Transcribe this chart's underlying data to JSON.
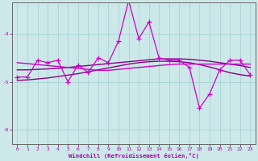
{
  "x": [
    0,
    1,
    2,
    3,
    4,
    5,
    6,
    7,
    8,
    9,
    10,
    11,
    12,
    13,
    14,
    15,
    16,
    17,
    18,
    19,
    20,
    21,
    22,
    23
  ],
  "y_main": [
    -4.9,
    -4.9,
    -4.55,
    -4.6,
    -4.55,
    -5.0,
    -4.65,
    -4.8,
    -4.5,
    -4.6,
    -4.15,
    -3.3,
    -4.1,
    -3.75,
    -4.5,
    -4.55,
    -4.55,
    -4.7,
    -5.55,
    -5.25,
    -4.75,
    -4.55,
    -4.55,
    -4.85
  ],
  "y_trend1": [
    -4.6,
    -4.62,
    -4.64,
    -4.66,
    -4.68,
    -4.7,
    -4.72,
    -4.74,
    -4.76,
    -4.76,
    -4.74,
    -4.72,
    -4.7,
    -4.68,
    -4.66,
    -4.64,
    -4.63,
    -4.63,
    -4.63,
    -4.63,
    -4.63,
    -4.63,
    -4.63,
    -4.63
  ],
  "y_trend2": [
    -4.75,
    -4.75,
    -4.74,
    -4.73,
    -4.72,
    -4.7,
    -4.68,
    -4.66,
    -4.64,
    -4.62,
    -4.6,
    -4.58,
    -4.56,
    -4.54,
    -4.52,
    -4.52,
    -4.52,
    -4.53,
    -4.55,
    -4.57,
    -4.6,
    -4.63,
    -4.66,
    -4.7
  ],
  "y_trend3": [
    -4.97,
    -4.96,
    -4.94,
    -4.92,
    -4.89,
    -4.86,
    -4.83,
    -4.79,
    -4.75,
    -4.71,
    -4.67,
    -4.63,
    -4.6,
    -4.58,
    -4.57,
    -4.57,
    -4.58,
    -4.6,
    -4.64,
    -4.69,
    -4.75,
    -4.81,
    -4.85,
    -4.88
  ],
  "line_color": "#cc00cc",
  "trend_color1": "#cc00cc",
  "trend_color2": "#880088",
  "trend_color3": "#880088",
  "bg_color": "#cce8e8",
  "grid_color": "#aad4d4",
  "axis_color": "#444444",
  "text_color": "#aa00aa",
  "xlabel": "Windchill (Refroidissement éolien,°C)",
  "xlim": [
    -0.5,
    23.5
  ],
  "ylim": [
    -6.3,
    -3.35
  ],
  "yticks": [
    -6,
    -5,
    -4
  ],
  "xticks": [
    0,
    1,
    2,
    3,
    4,
    5,
    6,
    7,
    8,
    9,
    10,
    11,
    12,
    13,
    14,
    15,
    16,
    17,
    18,
    19,
    20,
    21,
    22,
    23
  ],
  "marker": "+",
  "markersize": 4,
  "linewidth_main": 0.9,
  "linewidth_trend": 1.0
}
